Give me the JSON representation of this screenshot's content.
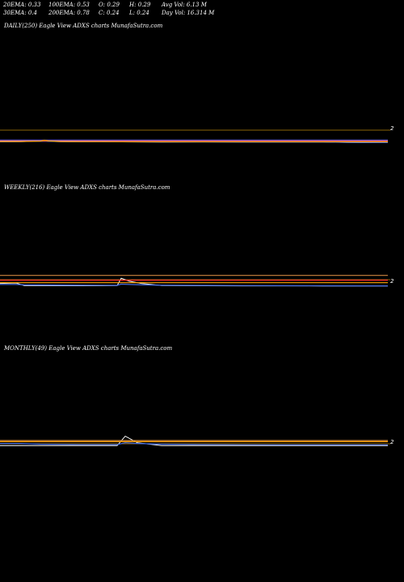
{
  "header": {
    "row1": [
      "20EMA: 0.33",
      "100EMA: 0.53",
      "O: 0.29",
      "H: 0.29",
      "Avg Vol: 6.13  M"
    ],
    "row2": [
      "30EMA: 0.4",
      "200EMA: 0.78",
      "C: 0.24",
      "L: 0.24",
      "Day Vol: 16.314  M"
    ]
  },
  "panels": [
    {
      "label": "DAILY(250) Eagle   View  ADXS charts MunafaSutra.com",
      "price_label": "2"
    },
    {
      "label": "WEEKLY(216) Eagle   View  ADXS charts MunafaSutra.com",
      "price_label": "2"
    },
    {
      "label": "MONTHLY(49) Eagle   View  ADXS charts MunafaSutra.com",
      "price_label": "2"
    }
  ],
  "chart_data": [
    {
      "type": "line",
      "title": "DAILY(250) Eagle   View  ADXS charts MunafaSutra.com",
      "x": [
        0,
        25,
        50,
        55,
        60,
        75,
        100,
        125,
        150,
        200,
        250,
        300,
        350,
        400,
        430,
        450,
        480
      ],
      "ylim": [
        0,
        3
      ],
      "series": [
        {
          "color": "#ffffff",
          "values": [
            0.28,
            0.3,
            0.4,
            0.45,
            0.35,
            0.3,
            0.28,
            0.3,
            0.28,
            0.26,
            0.27,
            0.26,
            0.25,
            0.26,
            0.2,
            0.18,
            0.2
          ]
        },
        {
          "color": "#4169e1",
          "values": [
            0.3,
            0.32,
            0.36,
            0.38,
            0.34,
            0.32,
            0.3,
            0.3,
            0.29,
            0.28,
            0.28,
            0.27,
            0.26,
            0.26,
            0.22,
            0.2,
            0.2
          ]
        },
        {
          "color": "#ff3030",
          "values": [
            0.4,
            0.4,
            0.4,
            0.4,
            0.4,
            0.4,
            0.4,
            0.4,
            0.4,
            0.4,
            0.4,
            0.4,
            0.4,
            0.4,
            0.4,
            0.4,
            0.4
          ]
        },
        {
          "color": "#ff69b4",
          "values": [
            0.47,
            0.47,
            0.47,
            0.47,
            0.47,
            0.47,
            0.47,
            0.47,
            0.47,
            0.47,
            0.47,
            0.47,
            0.47,
            0.47,
            0.47,
            0.47,
            0.47
          ]
        },
        {
          "color": "#6a5acd",
          "values": [
            0.52,
            0.52,
            0.52,
            0.52,
            0.52,
            0.52,
            0.52,
            0.52,
            0.52,
            0.52,
            0.52,
            0.52,
            0.52,
            0.52,
            0.52,
            0.52,
            0.52
          ]
        },
        {
          "color": "#ffa500",
          "values": [
            0.33,
            0.33,
            0.38,
            0.5,
            0.4,
            0.33,
            0.31,
            0.31,
            0.3,
            0.3,
            0.3,
            0.3,
            0.3,
            0.3,
            0.3,
            0.3,
            0.3
          ]
        }
      ]
    },
    {
      "type": "line",
      "title": "WEEKLY(216) Eagle   View  ADXS charts MunafaSutra.com",
      "x": [
        0,
        20,
        30,
        100,
        145,
        150,
        160,
        175,
        200,
        250,
        300,
        350,
        400,
        450,
        480
      ],
      "ylim": [
        0,
        3
      ],
      "series": [
        {
          "color": "#ffffff",
          "values": [
            0.6,
            0.65,
            0.3,
            0.28,
            0.3,
            1.3,
            0.9,
            0.6,
            0.3,
            0.28,
            0.27,
            0.27,
            0.26,
            0.25,
            0.25
          ]
        },
        {
          "color": "#4169e1",
          "values": [
            0.45,
            0.45,
            0.4,
            0.35,
            0.33,
            0.5,
            0.45,
            0.4,
            0.35,
            0.32,
            0.3,
            0.29,
            0.28,
            0.27,
            0.27
          ]
        },
        {
          "color": "#ffa500",
          "values": [
            0.7,
            0.7,
            0.7,
            0.7,
            0.7,
            0.7,
            0.7,
            0.7,
            0.7,
            0.7,
            0.7,
            0.7,
            0.7,
            0.7,
            0.7
          ]
        },
        {
          "color": "#ff3030",
          "values": [
            1.05,
            1.05,
            1.05,
            1.05,
            1.05,
            1.05,
            1.05,
            1.05,
            1.05,
            1.05,
            1.05,
            1.05,
            1.05,
            1.05,
            1.05
          ]
        },
        {
          "color": "#cd853f",
          "values": [
            1.7,
            1.7,
            1.7,
            1.7,
            1.7,
            1.7,
            1.7,
            1.7,
            1.7,
            1.7,
            1.7,
            1.7,
            1.7,
            1.7,
            1.7
          ]
        }
      ]
    },
    {
      "type": "line",
      "title": "MONTHLY(49) Eagle   View  ADXS charts MunafaSutra.com",
      "x": [
        0,
        25,
        50,
        100,
        145,
        155,
        170,
        200,
        250,
        300,
        350,
        400,
        450,
        480
      ],
      "ylim": [
        0,
        3
      ],
      "series": [
        {
          "color": "#ffffff",
          "values": [
            0.3,
            0.3,
            0.3,
            0.3,
            0.3,
            1.6,
            0.7,
            0.3,
            0.3,
            0.3,
            0.3,
            0.3,
            0.3,
            0.3
          ]
        },
        {
          "color": "#4169e1",
          "values": [
            0.6,
            0.6,
            0.5,
            0.45,
            0.45,
            0.7,
            0.6,
            0.5,
            0.45,
            0.42,
            0.4,
            0.4,
            0.4,
            0.4
          ]
        },
        {
          "color": "#ffa500",
          "values": [
            0.85,
            0.85,
            0.85,
            0.85,
            0.85,
            0.85,
            0.85,
            0.85,
            0.85,
            0.85,
            0.85,
            0.85,
            0.85,
            0.85
          ]
        },
        {
          "color": "#cd853f",
          "values": [
            1.0,
            1.0,
            1.0,
            1.0,
            1.0,
            1.0,
            1.0,
            1.0,
            1.0,
            1.0,
            1.0,
            1.0,
            1.0,
            1.0
          ]
        }
      ]
    }
  ]
}
